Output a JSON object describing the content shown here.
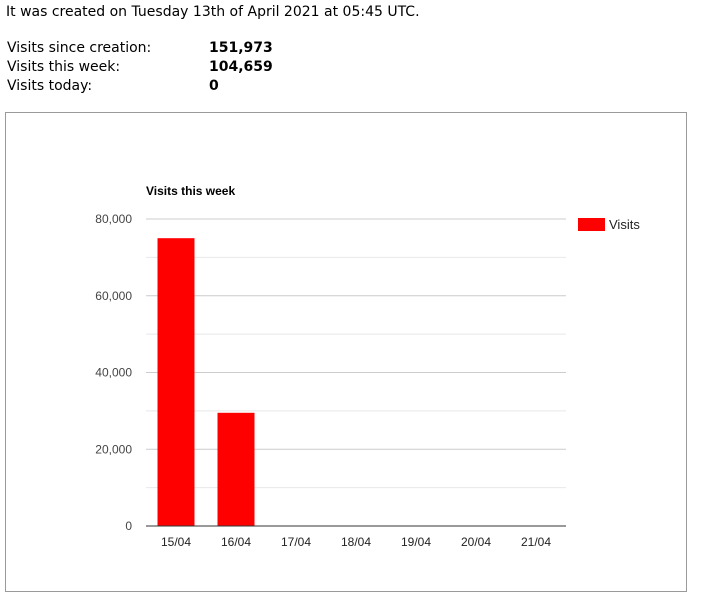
{
  "info": {
    "created_text": "It was created on Tuesday 13th of April 2021 at 05:45 UTC."
  },
  "stats": [
    {
      "label": "Visits since creation:",
      "value": "151,973"
    },
    {
      "label": "Visits this week:",
      "value": "104,659"
    },
    {
      "label": "Visits today:",
      "value": "0"
    }
  ],
  "colors": {
    "bar": "#ff0000",
    "grid": "#cccccc",
    "minor_grid": "#e8e8e8",
    "axis": "#333333"
  },
  "chart_data": {
    "type": "bar",
    "title": "Visits this week",
    "xlabel": "",
    "ylabel": "",
    "categories": [
      "15/04",
      "16/04",
      "17/04",
      "18/04",
      "19/04",
      "20/04",
      "21/04"
    ],
    "series": [
      {
        "name": "Visits",
        "values": [
          75000,
          29500,
          0,
          0,
          0,
          0,
          0
        ]
      }
    ],
    "ylim": [
      0,
      80000
    ],
    "yticks": [
      0,
      20000,
      40000,
      60000,
      80000
    ],
    "ytick_labels": [
      "0",
      "20,000",
      "40,000",
      "60,000",
      "80,000"
    ],
    "grid": true,
    "legend": "right"
  }
}
